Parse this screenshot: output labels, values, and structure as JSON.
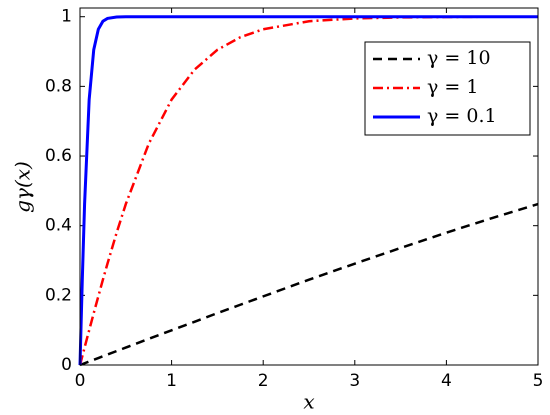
{
  "chart_data": {
    "type": "line",
    "xlabel": "x",
    "ylabel": "gγ(x)",
    "x": [
      0,
      0.025,
      0.05,
      0.1,
      0.15,
      0.2,
      0.25,
      0.3,
      0.4,
      0.5,
      0.75,
      1,
      1.25,
      1.5,
      1.75,
      2,
      2.5,
      3,
      3.5,
      4,
      4.5,
      5
    ],
    "series": [
      {
        "name": "γ = 10",
        "color": "#000000",
        "linestyle": "dashed",
        "values": [
          0,
          0.0025,
          0.005,
          0.01,
          0.015,
          0.02,
          0.025,
          0.03,
          0.04,
          0.05,
          0.075,
          0.0997,
          0.124,
          0.149,
          0.173,
          0.197,
          0.245,
          0.291,
          0.336,
          0.38,
          0.422,
          0.462
        ]
      },
      {
        "name": "γ = 1",
        "color": "#ff0000",
        "linestyle": "dashdot",
        "values": [
          0,
          0.025,
          0.05,
          0.0997,
          0.149,
          0.197,
          0.245,
          0.291,
          0.38,
          0.462,
          0.635,
          0.762,
          0.848,
          0.905,
          0.941,
          0.964,
          0.987,
          0.995,
          0.998,
          0.999,
          1,
          1
        ]
      },
      {
        "name": "γ = 0.1",
        "color": "#0000ff",
        "linestyle": "solid",
        "values": [
          0,
          0.245,
          0.462,
          0.762,
          0.905,
          0.964,
          0.987,
          0.995,
          0.999,
          1,
          1,
          1,
          1,
          1,
          1,
          1,
          1,
          1,
          1,
          1,
          1,
          1
        ]
      }
    ],
    "xlim": [
      0,
      5
    ],
    "xticks": [
      0,
      1,
      2,
      3,
      4,
      5
    ],
    "ylim": [
      0,
      1.025
    ],
    "yticks": [
      0,
      0.2,
      0.4,
      0.6,
      0.8,
      1
    ],
    "grid": false,
    "legend": "northeast"
  }
}
